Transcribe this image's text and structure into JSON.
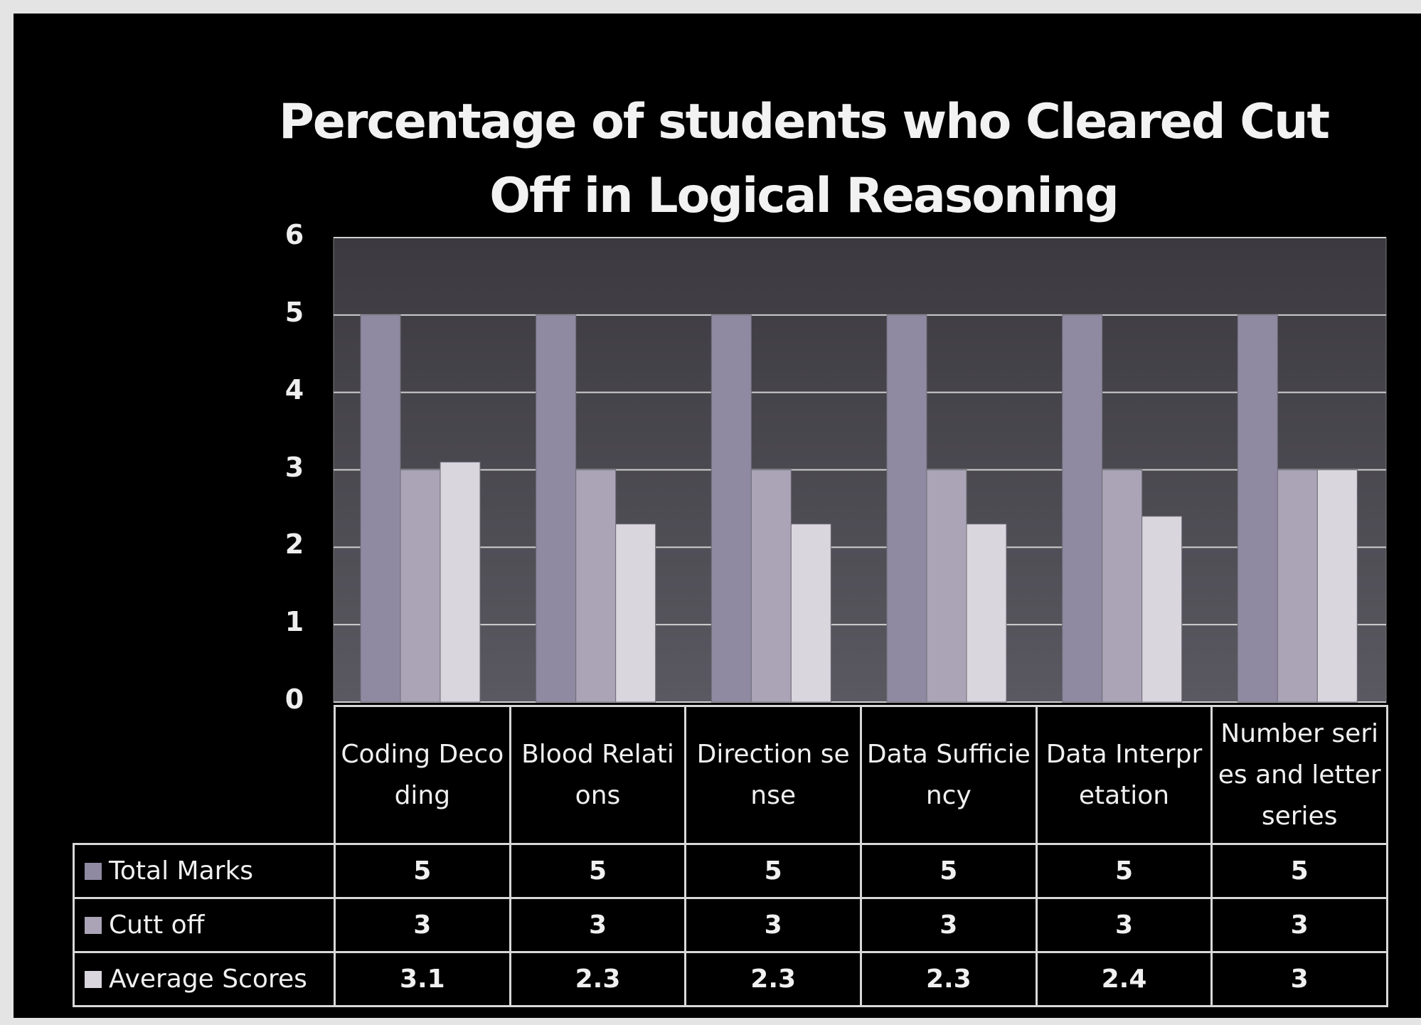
{
  "chart_data": {
    "type": "bar",
    "title": "Percentage of students who Cleared Cut Off in Logical Reasoning",
    "categories": [
      "Coding Decoding",
      "Blood Relations",
      "Direction sense",
      "Data Sufficiency",
      "Data Interpretation",
      "Number series and letter series"
    ],
    "series": [
      {
        "name": "Total Marks",
        "color": "#8f8aa2",
        "values": [
          5,
          5,
          5,
          5,
          5,
          5
        ]
      },
      {
        "name": "Cutt off",
        "color": "#aaa4b6",
        "values": [
          3,
          3,
          3,
          3,
          3,
          3
        ]
      },
      {
        "name": "Average Scores",
        "color": "#d9d6de",
        "values": [
          3.1,
          2.3,
          2.3,
          2.3,
          2.4,
          3
        ]
      }
    ],
    "ylim": [
      0,
      6
    ],
    "yticks": [
      0,
      1,
      2,
      3,
      4,
      5,
      6
    ],
    "grid": true,
    "data_table": true
  }
}
